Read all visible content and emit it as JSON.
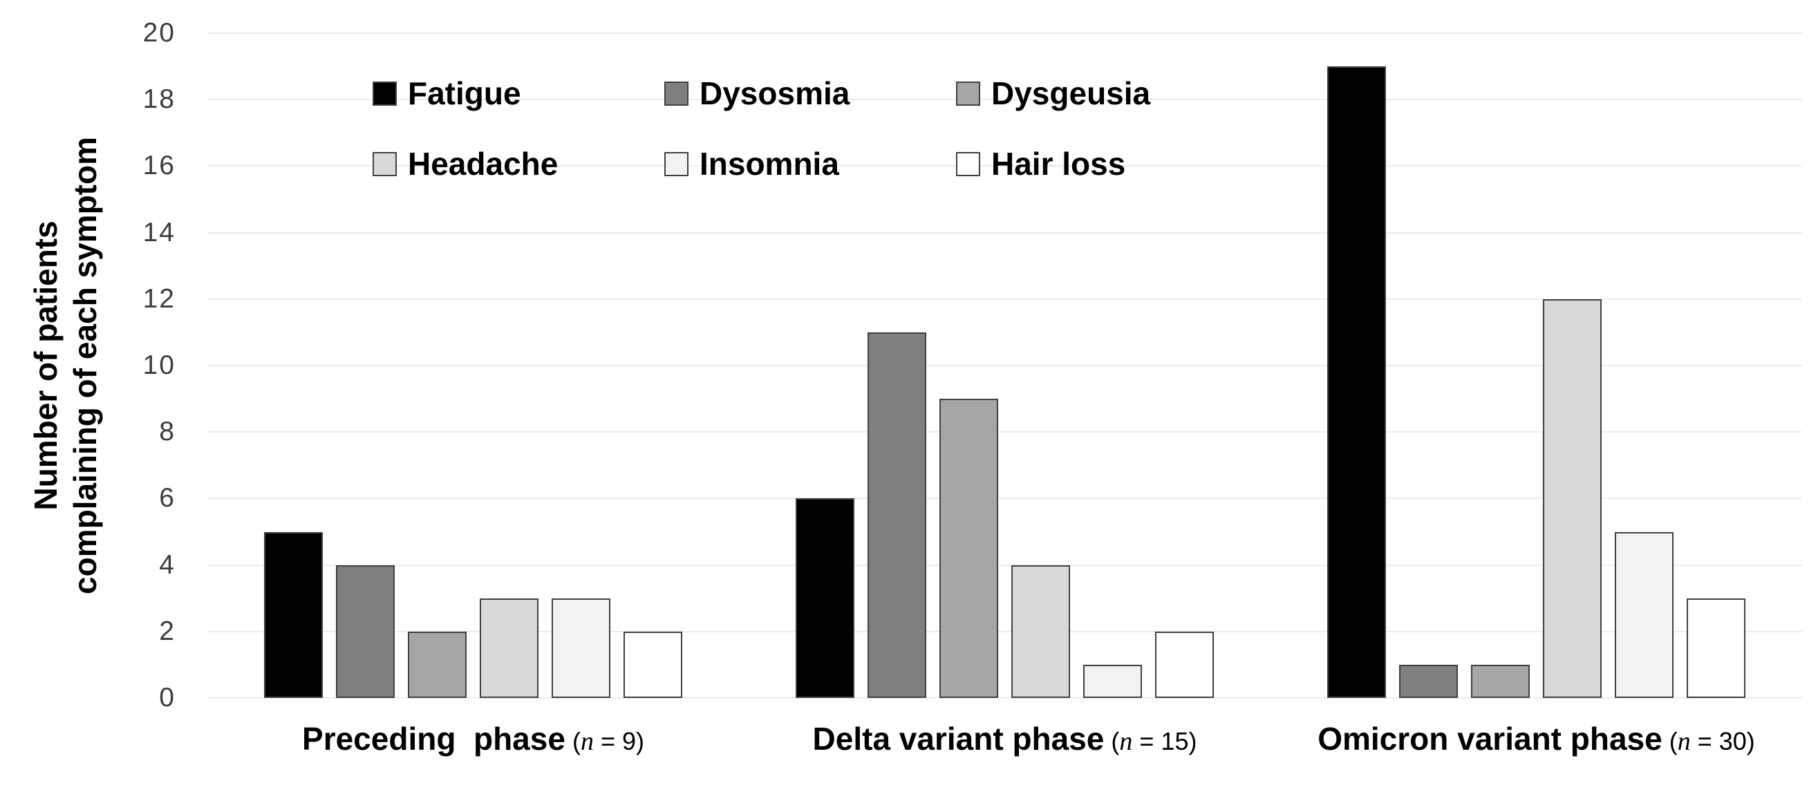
{
  "chart_data": {
    "type": "bar",
    "ylabel_lines": [
      "Number of patients",
      "complaining of each symptom"
    ],
    "ylim": [
      0,
      20
    ],
    "yticks": [
      0,
      2,
      4,
      6,
      8,
      10,
      12,
      14,
      16,
      18,
      20
    ],
    "grid": true,
    "gridline_color": "#ececec",
    "axis_tick_color": "#3d3d3d",
    "bar_border_color": "#404040",
    "n_symbol": "n",
    "categories": [
      {
        "name": "Preceding  phase",
        "n": "9"
      },
      {
        "name": "Delta variant phase",
        "n": "15"
      },
      {
        "name": "Omicron variant phase",
        "n": "30"
      }
    ],
    "series": [
      {
        "name": "Fatigue",
        "color": "#000000",
        "values": [
          5,
          6,
          19
        ]
      },
      {
        "name": "Dysosmia",
        "color": "#7f7f7f",
        "values": [
          4,
          11,
          1
        ]
      },
      {
        "name": "Dysgeusia",
        "color": "#a6a6a6",
        "values": [
          2,
          9,
          1
        ]
      },
      {
        "name": "Headache",
        "color": "#d9d9d9",
        "values": [
          3,
          4,
          12
        ]
      },
      {
        "name": "Insomnia",
        "color": "#f2f2f2",
        "values": [
          3,
          1,
          5
        ]
      },
      {
        "name": "Hair loss",
        "color": "#ffffff",
        "values": [
          2,
          2,
          3
        ]
      }
    ],
    "legend": {
      "rows": 2,
      "columns": 3,
      "position": "inside-top-left"
    }
  }
}
